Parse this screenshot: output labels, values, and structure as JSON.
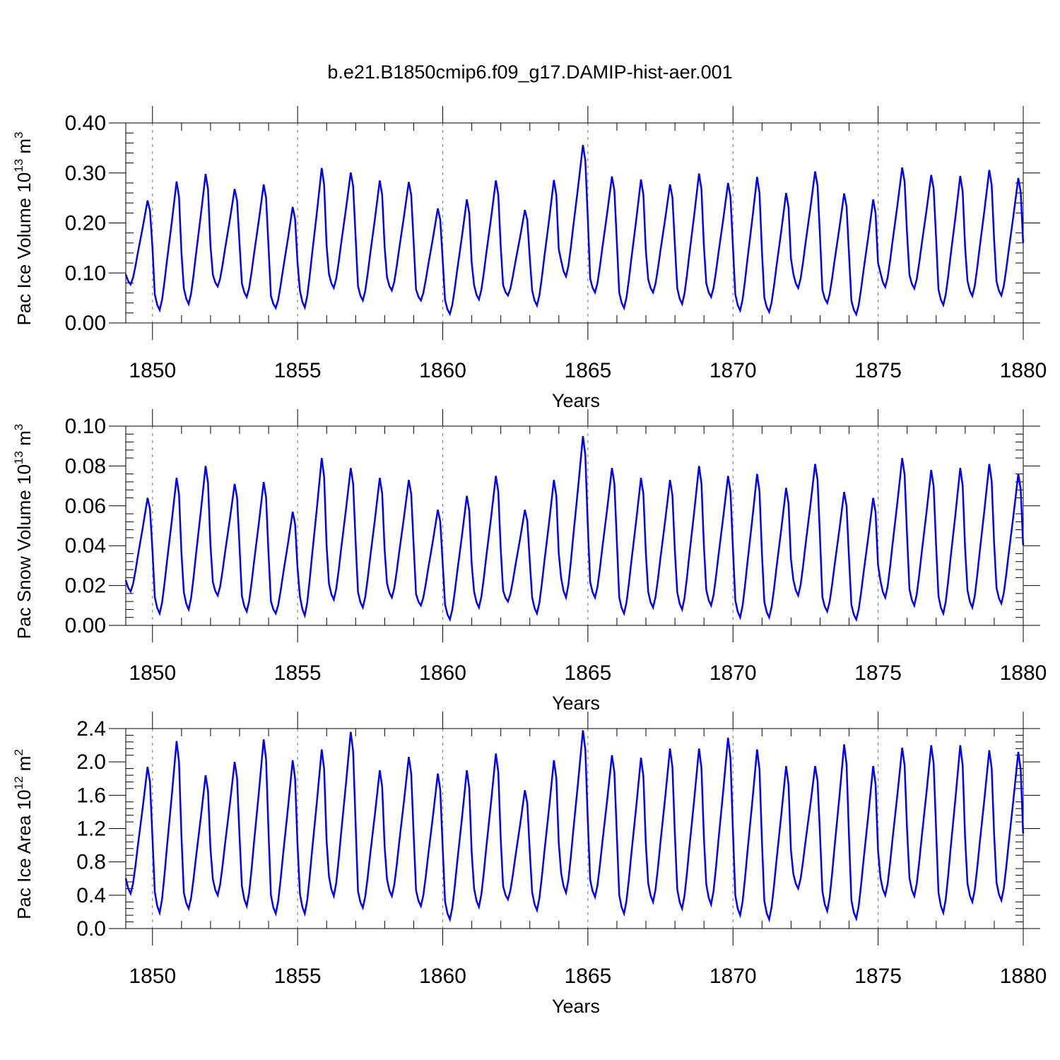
{
  "title": "b.e21.B1850cmip6.f09_g17.DAMIP-hist-aer.001",
  "line_color": "#0000ff",
  "chart_data": [
    {
      "type": "line",
      "title": "b.e21.B1850cmip6.f09_g17.DAMIP-hist-aer.001",
      "xlabel": "Years",
      "ylabel_main": "Pac Ice Volume 10",
      "ylabel_exp": "13",
      "ylabel_unit": "m",
      "ylabel_unit_exp": "3",
      "xlim": [
        1849.08,
        1880.0
      ],
      "ylim": [
        0.0,
        0.4
      ],
      "xticks": [
        1850,
        1855,
        1860,
        1865,
        1870,
        1875,
        1880
      ],
      "xtick_labels": [
        "1850",
        "1855",
        "1860",
        "1865",
        "1870",
        "1875",
        "1880"
      ],
      "yticks": [
        0.0,
        0.1,
        0.2,
        0.3,
        0.4
      ],
      "ytick_labels": [
        "0.00",
        "0.10",
        "0.20",
        "0.30",
        "0.40"
      ],
      "grid": "dashed vertical at 5-year marks",
      "series": [
        {
          "x_start": 1849.08,
          "x_step": 0.08333,
          "peaks": [
            0.245,
            0.283,
            0.298,
            0.268,
            0.277,
            0.232,
            0.31,
            0.301,
            0.285,
            0.282,
            0.229,
            0.247,
            0.285,
            0.226,
            0.286,
            0.356,
            0.293,
            0.287,
            0.277,
            0.299,
            0.28,
            0.292,
            0.26,
            0.303,
            0.259,
            0.247,
            0.311,
            0.296,
            0.294,
            0.306,
            0.29
          ],
          "troughs": [
            0.077,
            0.026,
            0.038,
            0.073,
            0.052,
            0.03,
            0.031,
            0.07,
            0.045,
            0.065,
            0.045,
            0.018,
            0.047,
            0.055,
            0.035,
            0.093,
            0.061,
            0.03,
            0.061,
            0.038,
            0.052,
            0.025,
            0.022,
            0.07,
            0.04,
            0.017,
            0.072,
            0.069,
            0.036,
            0.054,
            0.055
          ]
        }
      ]
    },
    {
      "type": "line",
      "xlabel": "Years",
      "ylabel_main": "Pac Snow Volume 10",
      "ylabel_exp": "13",
      "ylabel_unit": "m",
      "ylabel_unit_exp": "3",
      "xlim": [
        1849.08,
        1880.0
      ],
      "ylim": [
        0.0,
        0.1
      ],
      "xticks": [
        1850,
        1855,
        1860,
        1865,
        1870,
        1875,
        1880
      ],
      "xtick_labels": [
        "1850",
        "1855",
        "1860",
        "1865",
        "1870",
        "1875",
        "1880"
      ],
      "yticks": [
        0.0,
        0.02,
        0.04,
        0.06,
        0.08,
        0.1
      ],
      "ytick_labels": [
        "0.00",
        "0.02",
        "0.04",
        "0.06",
        "0.08",
        "0.10"
      ],
      "grid": "dashed vertical at 5-year marks",
      "series": [
        {
          "x_start": 1849.08,
          "x_step": 0.08333,
          "peaks": [
            0.064,
            0.074,
            0.08,
            0.071,
            0.072,
            0.057,
            0.084,
            0.079,
            0.074,
            0.073,
            0.058,
            0.065,
            0.075,
            0.058,
            0.073,
            0.095,
            0.079,
            0.074,
            0.073,
            0.08,
            0.075,
            0.076,
            0.069,
            0.081,
            0.067,
            0.064,
            0.084,
            0.078,
            0.079,
            0.081,
            0.076
          ],
          "troughs": [
            0.017,
            0.006,
            0.008,
            0.015,
            0.007,
            0.006,
            0.005,
            0.013,
            0.009,
            0.014,
            0.01,
            0.003,
            0.009,
            0.012,
            0.006,
            0.014,
            0.014,
            0.006,
            0.009,
            0.008,
            0.01,
            0.004,
            0.004,
            0.015,
            0.007,
            0.003,
            0.014,
            0.01,
            0.006,
            0.009,
            0.011
          ]
        }
      ]
    },
    {
      "type": "line",
      "xlabel": "Years",
      "ylabel_main": "Pac Ice Area 10",
      "ylabel_exp": "12",
      "ylabel_unit": "m",
      "ylabel_unit_exp": "2",
      "xlim": [
        1849.08,
        1880.0
      ],
      "ylim": [
        0.0,
        2.4
      ],
      "xticks": [
        1850,
        1855,
        1860,
        1865,
        1870,
        1875,
        1880
      ],
      "xtick_labels": [
        "1850",
        "1855",
        "1860",
        "1865",
        "1870",
        "1875",
        "1880"
      ],
      "yticks": [
        0.0,
        0.4,
        0.8,
        1.2,
        1.6,
        2.0,
        2.4
      ],
      "ytick_labels": [
        "0.0",
        "0.4",
        "0.8",
        "1.2",
        "1.6",
        "2.0",
        "2.4"
      ],
      "grid": "dashed vertical at 5-year marks",
      "series": [
        {
          "x_start": 1849.08,
          "x_step": 0.08333,
          "peaks": [
            1.94,
            2.25,
            1.84,
            2.0,
            2.27,
            2.02,
            2.15,
            2.36,
            1.9,
            2.06,
            1.86,
            1.9,
            2.1,
            1.66,
            2.02,
            2.38,
            2.08,
            2.05,
            2.16,
            2.16,
            2.29,
            2.15,
            1.95,
            1.95,
            2.21,
            1.95,
            2.17,
            2.2,
            2.2,
            2.14,
            2.12
          ],
          "troughs": [
            0.42,
            0.19,
            0.24,
            0.4,
            0.27,
            0.18,
            0.18,
            0.39,
            0.25,
            0.39,
            0.27,
            0.11,
            0.26,
            0.35,
            0.22,
            0.43,
            0.38,
            0.18,
            0.32,
            0.24,
            0.29,
            0.16,
            0.11,
            0.48,
            0.21,
            0.12,
            0.4,
            0.39,
            0.19,
            0.32,
            0.34
          ]
        }
      ]
    }
  ]
}
